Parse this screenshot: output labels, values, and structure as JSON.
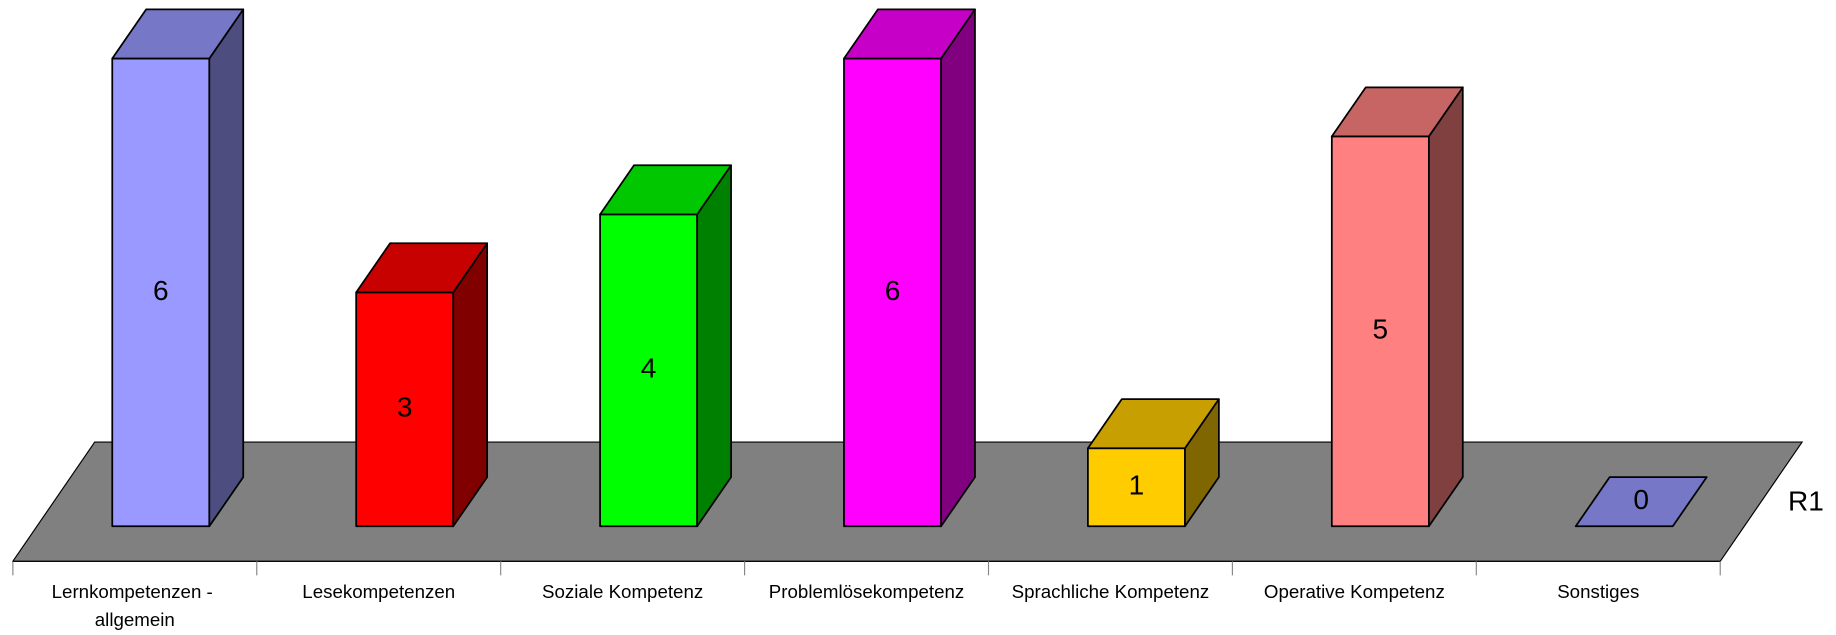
{
  "chart_data": {
    "type": "bar3d",
    "categories": [
      "Lernkompetenzen - allgemein",
      "Lesekompetenzen",
      "Soziale Kompetenz",
      "Problemlösekompetenz",
      "Sprachliche Kompetenz",
      "Operative Kompetenz",
      "Sonstiges"
    ],
    "series": [
      {
        "name": "R1",
        "values": [
          6,
          3,
          4,
          6,
          1,
          5,
          0
        ],
        "colors": [
          "#9999ff",
          "#ff0000",
          "#00ff00",
          "#ff00ff",
          "#ffcc00",
          "#ff8080",
          "#9999ff"
        ]
      }
    ]
  }
}
